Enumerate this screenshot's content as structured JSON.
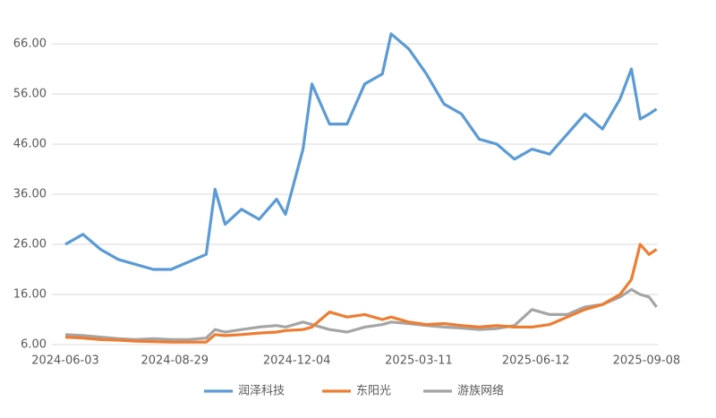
{
  "chart_data": {
    "type": "line",
    "x": [
      "2024-06-03",
      "2024-06-17",
      "2024-07-01",
      "2024-07-15",
      "2024-07-29",
      "2024-08-12",
      "2024-08-26",
      "2024-09-09",
      "2024-09-23",
      "2024-09-30",
      "2024-10-08",
      "2024-10-21",
      "2024-11-04",
      "2024-11-18",
      "2024-11-25",
      "2024-12-09",
      "2024-12-16",
      "2024-12-30",
      "2025-01-13",
      "2025-01-27",
      "2025-02-10",
      "2025-02-17",
      "2025-03-03",
      "2025-03-17",
      "2025-03-31",
      "2025-04-14",
      "2025-04-28",
      "2025-05-12",
      "2025-05-26",
      "2025-06-09",
      "2025-06-23",
      "2025-07-07",
      "2025-07-21",
      "2025-08-04",
      "2025-08-18",
      "2025-08-27",
      "2025-09-03",
      "2025-09-10",
      "2025-09-16"
    ],
    "series": [
      {
        "name": "润泽科技",
        "color": "#5b9bd5",
        "values": [
          26,
          28,
          25,
          23,
          22,
          21,
          21,
          22.5,
          24,
          37,
          30,
          33,
          31,
          35,
          32,
          45,
          58,
          50,
          50,
          58,
          60,
          68,
          65,
          60,
          54,
          52,
          47,
          46,
          43,
          45,
          44,
          48,
          52,
          49,
          55,
          61,
          51,
          52,
          53
        ]
      },
      {
        "name": "东阳光",
        "color": "#ed7d31",
        "values": [
          7.5,
          7.3,
          7.0,
          6.9,
          6.7,
          6.6,
          6.5,
          6.5,
          6.5,
          8.0,
          7.8,
          8.0,
          8.3,
          8.5,
          8.8,
          9.0,
          9.5,
          12.5,
          11.5,
          12.0,
          11.0,
          11.5,
          10.5,
          10.0,
          10.2,
          9.8,
          9.5,
          9.8,
          9.5,
          9.5,
          10.0,
          11.5,
          13.0,
          14.0,
          16.0,
          19.0,
          26.0,
          24.0,
          25.0
        ]
      },
      {
        "name": "游族网络",
        "color": "#a5a5a5",
        "values": [
          8,
          7.8,
          7.5,
          7.2,
          7.0,
          7.2,
          7.0,
          7.0,
          7.3,
          9.0,
          8.5,
          9.0,
          9.5,
          9.8,
          9.5,
          10.5,
          10.0,
          9.0,
          8.5,
          9.5,
          10.0,
          10.5,
          10.2,
          9.8,
          9.5,
          9.3,
          9.0,
          9.2,
          9.8,
          13.0,
          12.0,
          12.0,
          13.5,
          14.0,
          15.5,
          17.0,
          16.0,
          15.5,
          13.5
        ]
      }
    ],
    "xlim": [
      "2024-06-03",
      "2025-09-17"
    ],
    "xticks": [
      "2024-06-03",
      "2024-08-29",
      "2024-12-04",
      "2025-03-11",
      "2025-06-12",
      "2025-09-08"
    ],
    "ylim": [
      6,
      70
    ],
    "yticks": [
      {
        "value": 6,
        "label": "6.00"
      },
      {
        "value": 16,
        "label": "16.00"
      },
      {
        "value": 26,
        "label": "26.00"
      },
      {
        "value": 36,
        "label": "36.00"
      },
      {
        "value": 46,
        "label": "46.00"
      },
      {
        "value": 56,
        "label": "56.00"
      },
      {
        "value": 66,
        "label": "66.00"
      }
    ],
    "grid": true
  }
}
